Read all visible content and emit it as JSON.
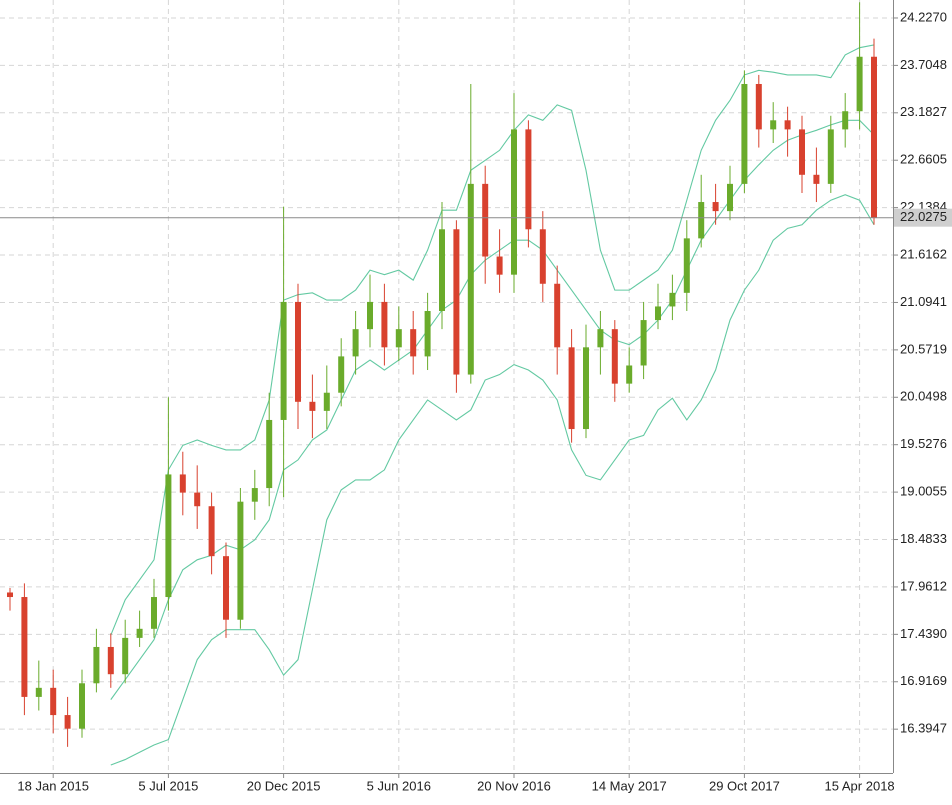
{
  "chart_data": {
    "type": "candlestick",
    "categories": [
      null,
      null,
      null,
      "18 Jan 2015",
      null,
      null,
      null,
      null,
      null,
      null,
      null,
      "5 Jul 2015",
      null,
      null,
      null,
      null,
      null,
      null,
      null,
      "20 Dec 2015",
      null,
      null,
      null,
      null,
      null,
      null,
      null,
      "5 Jun 2016",
      null,
      null,
      null,
      null,
      null,
      null,
      null,
      "20 Nov 2016",
      null,
      null,
      null,
      null,
      null,
      null,
      null,
      "14 May 2017",
      null,
      null,
      null,
      null,
      null,
      null,
      null,
      "29 Oct 2017",
      null,
      null,
      null,
      null,
      null,
      null,
      null,
      "15 Apr 2018",
      null
    ],
    "open": [
      17.9,
      17.85,
      16.75,
      16.85,
      16.55,
      16.4,
      16.9,
      17.3,
      17.0,
      17.4,
      17.5,
      17.85,
      19.2,
      19.0,
      18.85,
      18.3,
      17.6,
      18.9,
      19.05,
      19.8,
      21.1,
      20.0,
      19.9,
      20.1,
      20.5,
      20.8,
      21.1,
      20.6,
      20.8,
      20.5,
      21.0,
      21.9,
      20.3,
      22.4,
      21.6,
      21.4,
      23.0,
      21.9,
      21.3,
      20.6,
      19.7,
      20.6,
      20.8,
      20.2,
      20.4,
      20.9,
      21.05,
      21.2,
      21.8,
      22.2,
      22.1,
      22.4,
      23.5,
      23.0,
      23.1,
      23.0,
      22.5,
      22.4,
      23.0,
      23.2,
      23.8
    ],
    "high": [
      17.95,
      18.0,
      17.15,
      17.05,
      16.75,
      17.05,
      17.5,
      17.45,
      17.6,
      17.7,
      18.05,
      20.05,
      19.45,
      19.3,
      19.0,
      18.45,
      19.05,
      19.25,
      20.1,
      22.15,
      21.3,
      20.3,
      20.4,
      20.7,
      21.0,
      21.4,
      21.3,
      21.05,
      21.0,
      21.2,
      22.2,
      22.0,
      23.5,
      22.6,
      21.9,
      23.4,
      23.1,
      22.1,
      21.5,
      20.8,
      20.85,
      21.0,
      20.9,
      20.6,
      21.1,
      21.3,
      21.4,
      22.0,
      22.5,
      22.4,
      22.6,
      23.65,
      23.6,
      23.3,
      23.25,
      23.15,
      22.8,
      23.15,
      23.4,
      24.4,
      24.0
    ],
    "low": [
      17.7,
      16.55,
      16.6,
      16.35,
      16.2,
      16.3,
      16.8,
      16.85,
      16.9,
      17.3,
      17.4,
      17.7,
      18.75,
      18.6,
      18.1,
      17.4,
      17.5,
      18.7,
      18.85,
      18.95,
      19.7,
      19.6,
      19.7,
      19.95,
      20.3,
      20.6,
      20.4,
      20.45,
      20.3,
      20.35,
      20.8,
      20.1,
      20.2,
      21.3,
      21.2,
      21.2,
      21.7,
      21.1,
      20.3,
      19.55,
      19.6,
      20.3,
      20.0,
      20.1,
      20.25,
      20.8,
      20.9,
      21.0,
      21.7,
      21.95,
      22.0,
      22.3,
      22.8,
      22.85,
      22.7,
      22.3,
      22.2,
      22.3,
      22.8,
      23.0,
      21.95
    ],
    "close": [
      17.85,
      16.75,
      16.85,
      16.55,
      16.4,
      16.9,
      17.3,
      17.0,
      17.4,
      17.5,
      17.85,
      19.2,
      19.0,
      18.85,
      18.3,
      17.6,
      18.9,
      19.05,
      19.8,
      21.1,
      20.0,
      19.9,
      20.1,
      20.5,
      20.8,
      21.1,
      20.6,
      20.8,
      20.5,
      21.0,
      21.9,
      20.3,
      22.4,
      21.6,
      21.4,
      23.0,
      21.9,
      21.3,
      20.6,
      19.7,
      20.6,
      20.8,
      20.2,
      20.4,
      20.9,
      21.05,
      21.2,
      21.8,
      22.2,
      22.1,
      22.4,
      23.5,
      23.0,
      23.1,
      23.0,
      22.5,
      22.4,
      23.0,
      23.2,
      23.8,
      22.0275
    ],
    "up_color": "#6aab2b",
    "down_color": "#d8412e",
    "bollinger": {
      "color": "#63c9a2",
      "upper": [
        null,
        null,
        null,
        null,
        null,
        null,
        null,
        17.43,
        17.82,
        18.04,
        18.26,
        19.25,
        19.52,
        19.58,
        19.52,
        19.47,
        19.47,
        19.58,
        20.02,
        21.12,
        21.18,
        21.2,
        21.12,
        21.12,
        21.23,
        21.45,
        21.4,
        21.45,
        21.34,
        21.67,
        22.11,
        22.11,
        22.55,
        22.66,
        22.77,
        22.99,
        23.16,
        23.1,
        23.27,
        23.21,
        22.55,
        21.67,
        21.23,
        21.23,
        21.34,
        21.45,
        21.67,
        22.22,
        22.77,
        23.1,
        23.32,
        23.6,
        23.65,
        23.63,
        23.6,
        23.6,
        23.6,
        23.57,
        23.82,
        23.9,
        23.93
      ],
      "middle": [
        null,
        null,
        null,
        null,
        null,
        null,
        null,
        16.72,
        16.94,
        17.16,
        17.38,
        17.82,
        18.15,
        18.26,
        18.31,
        18.42,
        18.37,
        18.48,
        18.7,
        19.25,
        19.36,
        19.58,
        19.69,
        20.02,
        20.35,
        20.46,
        20.35,
        20.46,
        20.57,
        20.79,
        21.01,
        21.12,
        21.4,
        21.56,
        21.67,
        21.78,
        21.78,
        21.67,
        21.45,
        21.23,
        21.01,
        20.79,
        20.68,
        20.63,
        20.74,
        20.9,
        21.12,
        21.45,
        21.78,
        22.0,
        22.22,
        22.44,
        22.61,
        22.77,
        22.88,
        22.94,
        22.99,
        23.05,
        23.1,
        23.1,
        22.94
      ],
      "lower": [
        null,
        null,
        null,
        null,
        null,
        null,
        null,
        16.0,
        16.06,
        16.14,
        16.22,
        16.28,
        16.72,
        17.16,
        17.38,
        17.49,
        17.49,
        17.49,
        17.27,
        16.99,
        17.16,
        17.93,
        18.7,
        19.03,
        19.14,
        19.14,
        19.25,
        19.58,
        19.8,
        20.02,
        19.91,
        19.8,
        19.91,
        20.24,
        20.3,
        20.41,
        20.35,
        20.24,
        20.02,
        19.47,
        19.19,
        19.14,
        19.36,
        19.58,
        19.63,
        19.91,
        20.04,
        19.8,
        20.02,
        20.35,
        20.9,
        21.23,
        21.45,
        21.78,
        21.91,
        21.95,
        22.11,
        22.22,
        22.28,
        22.22,
        21.95
      ]
    },
    "ylim": [
      15.912,
      24.425
    ],
    "yticks": [
      {
        "value": 24.227,
        "label": "24.2270"
      },
      {
        "value": 23.7048,
        "label": "23.7048"
      },
      {
        "value": 23.1827,
        "label": "23.1827"
      },
      {
        "value": 22.6605,
        "label": "22.6605"
      },
      {
        "value": 22.1384,
        "label": "22.1384"
      },
      {
        "value": 21.6162,
        "label": "21.6162"
      },
      {
        "value": 21.0941,
        "label": "21.0941"
      },
      {
        "value": 20.5719,
        "label": "20.5719"
      },
      {
        "value": 20.0498,
        "label": "20.0498"
      },
      {
        "value": 19.5276,
        "label": "19.5276"
      },
      {
        "value": 19.0055,
        "label": "19.0055"
      },
      {
        "value": 18.4833,
        "label": "18.4833"
      },
      {
        "value": 17.9612,
        "label": "17.9612"
      },
      {
        "value": 17.439,
        "label": "17.4390"
      },
      {
        "value": 16.9169,
        "label": "16.9169"
      },
      {
        "value": 16.3947,
        "label": "16.3947"
      }
    ],
    "current_price": 22.0275,
    "grid": true
  }
}
